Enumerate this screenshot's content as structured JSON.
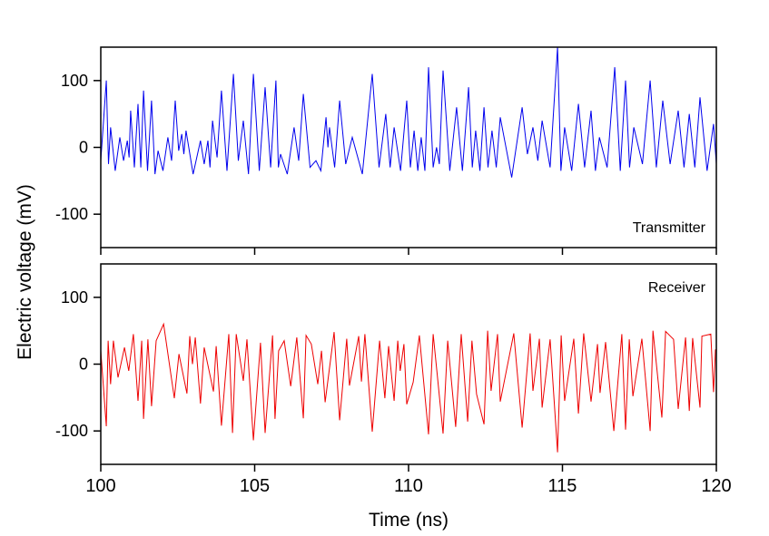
{
  "chart_data": {
    "type": "line",
    "xlabel": "Time (ns)",
    "ylabel": "Electric voltage (mV)",
    "xlim": [
      100,
      120
    ],
    "xticks": [
      100,
      105,
      110,
      115,
      120
    ],
    "grid": false,
    "panels": [
      {
        "label": "Transmitter",
        "label_position": "bottom-right",
        "color": "#0000ee",
        "ylim": [
          -150,
          150
        ],
        "yticks": [
          100,
          0,
          -100
        ],
        "points": [
          [
            100.0,
            -20
          ],
          [
            100.18,
            100
          ],
          [
            100.25,
            -25
          ],
          [
            100.32,
            30
          ],
          [
            100.47,
            -35
          ],
          [
            100.62,
            15
          ],
          [
            100.74,
            -20
          ],
          [
            100.86,
            10
          ],
          [
            100.92,
            -15
          ],
          [
            100.97,
            55
          ],
          [
            101.09,
            -30
          ],
          [
            101.21,
            65
          ],
          [
            101.3,
            -30
          ],
          [
            101.39,
            85
          ],
          [
            101.52,
            -35
          ],
          [
            101.65,
            70
          ],
          [
            101.76,
            -40
          ],
          [
            101.86,
            -5
          ],
          [
            102.02,
            -35
          ],
          [
            102.18,
            15
          ],
          [
            102.3,
            -20
          ],
          [
            102.42,
            70
          ],
          [
            102.53,
            -5
          ],
          [
            102.63,
            20
          ],
          [
            102.7,
            -10
          ],
          [
            102.77,
            25
          ],
          [
            103.0,
            -40
          ],
          [
            103.24,
            10
          ],
          [
            103.36,
            -25
          ],
          [
            103.48,
            10
          ],
          [
            103.55,
            -30
          ],
          [
            103.63,
            40
          ],
          [
            103.78,
            -15
          ],
          [
            103.92,
            85
          ],
          [
            104.1,
            -35
          ],
          [
            104.31,
            110
          ],
          [
            104.47,
            -20
          ],
          [
            104.63,
            40
          ],
          [
            104.8,
            -40
          ],
          [
            104.96,
            110
          ],
          [
            105.15,
            -35
          ],
          [
            105.34,
            90
          ],
          [
            105.52,
            -30
          ],
          [
            105.69,
            100
          ],
          [
            105.77,
            -30
          ],
          [
            105.84,
            -10
          ],
          [
            106.06,
            -40
          ],
          [
            106.28,
            30
          ],
          [
            106.43,
            -20
          ],
          [
            106.58,
            80
          ],
          [
            106.8,
            -30
          ],
          [
            106.99,
            -20
          ],
          [
            107.15,
            -35
          ],
          [
            107.32,
            45
          ],
          [
            107.38,
            0
          ],
          [
            107.43,
            30
          ],
          [
            107.6,
            -30
          ],
          [
            107.76,
            70
          ],
          [
            107.96,
            -25
          ],
          [
            108.17,
            15
          ],
          [
            108.5,
            -40
          ],
          [
            108.82,
            110
          ],
          [
            109.04,
            -30
          ],
          [
            109.26,
            50
          ],
          [
            109.4,
            -30
          ],
          [
            109.53,
            30
          ],
          [
            109.74,
            -35
          ],
          [
            109.94,
            70
          ],
          [
            110.06,
            -30
          ],
          [
            110.18,
            25
          ],
          [
            110.3,
            -35
          ],
          [
            110.41,
            15
          ],
          [
            110.53,
            -35
          ],
          [
            110.65,
            120
          ],
          [
            110.8,
            -30
          ],
          [
            110.91,
            0
          ],
          [
            111.0,
            -25
          ],
          [
            111.12,
            115
          ],
          [
            111.34,
            -35
          ],
          [
            111.56,
            60
          ],
          [
            111.75,
            -35
          ],
          [
            111.95,
            90
          ],
          [
            112.07,
            -30
          ],
          [
            112.18,
            25
          ],
          [
            112.32,
            -35
          ],
          [
            112.45,
            60
          ],
          [
            112.58,
            -30
          ],
          [
            112.71,
            25
          ],
          [
            112.85,
            -30
          ],
          [
            112.98,
            45
          ],
          [
            113.35,
            -45
          ],
          [
            113.69,
            60
          ],
          [
            113.86,
            -10
          ],
          [
            114.04,
            30
          ],
          [
            114.2,
            -20
          ],
          [
            114.34,
            40
          ],
          [
            114.6,
            -30
          ],
          [
            114.84,
            150
          ],
          [
            114.95,
            -35
          ],
          [
            115.07,
            30
          ],
          [
            115.3,
            -35
          ],
          [
            115.52,
            65
          ],
          [
            115.72,
            -30
          ],
          [
            115.93,
            55
          ],
          [
            116.07,
            -35
          ],
          [
            116.2,
            15
          ],
          [
            116.45,
            -30
          ],
          [
            116.7,
            120
          ],
          [
            116.88,
            -35
          ],
          [
            117.05,
            100
          ],
          [
            117.18,
            -30
          ],
          [
            117.32,
            30
          ],
          [
            117.6,
            -25
          ],
          [
            117.85,
            100
          ],
          [
            118.05,
            -30
          ],
          [
            118.26,
            70
          ],
          [
            118.5,
            -25
          ],
          [
            118.76,
            55
          ],
          [
            118.95,
            -30
          ],
          [
            119.12,
            50
          ],
          [
            119.3,
            -30
          ],
          [
            119.47,
            75
          ],
          [
            119.7,
            -35
          ],
          [
            119.91,
            35
          ],
          [
            120.0,
            -25
          ]
        ]
      },
      {
        "label": "Receiver",
        "label_position": "top-right",
        "color": "#ee0000",
        "ylim": [
          -150,
          150
        ],
        "yticks": [
          100,
          0,
          -100
        ],
        "points": [
          [
            100.0,
            20
          ],
          [
            100.18,
            -93
          ],
          [
            100.24,
            35
          ],
          [
            100.32,
            -30
          ],
          [
            100.41,
            35
          ],
          [
            100.56,
            -20
          ],
          [
            100.77,
            25
          ],
          [
            100.91,
            -10
          ],
          [
            101.06,
            45
          ],
          [
            101.21,
            -55
          ],
          [
            101.33,
            35
          ],
          [
            101.39,
            -82
          ],
          [
            101.53,
            37
          ],
          [
            101.65,
            -63
          ],
          [
            101.8,
            35
          ],
          [
            102.04,
            60
          ],
          [
            102.39,
            -51
          ],
          [
            102.54,
            15
          ],
          [
            102.8,
            -44
          ],
          [
            102.89,
            42
          ],
          [
            102.98,
            0
          ],
          [
            103.07,
            40
          ],
          [
            103.24,
            -59
          ],
          [
            103.36,
            25
          ],
          [
            103.66,
            -41
          ],
          [
            103.75,
            27
          ],
          [
            103.92,
            -92
          ],
          [
            104.16,
            45
          ],
          [
            104.28,
            -103
          ],
          [
            104.4,
            45
          ],
          [
            104.63,
            -25
          ],
          [
            104.75,
            37
          ],
          [
            104.96,
            -114
          ],
          [
            105.19,
            32
          ],
          [
            105.34,
            -103
          ],
          [
            105.58,
            43
          ],
          [
            105.66,
            -82
          ],
          [
            105.78,
            20
          ],
          [
            105.96,
            35
          ],
          [
            106.17,
            -33
          ],
          [
            106.37,
            40
          ],
          [
            106.58,
            -81
          ],
          [
            106.67,
            43
          ],
          [
            106.84,
            30
          ],
          [
            107.05,
            -30
          ],
          [
            107.17,
            20
          ],
          [
            107.29,
            -57
          ],
          [
            107.58,
            48
          ],
          [
            107.76,
            -84
          ],
          [
            107.99,
            38
          ],
          [
            108.08,
            -32
          ],
          [
            108.38,
            42
          ],
          [
            108.47,
            -26
          ],
          [
            108.58,
            45
          ],
          [
            108.82,
            -101
          ],
          [
            109.06,
            35
          ],
          [
            109.23,
            -51
          ],
          [
            109.35,
            27
          ],
          [
            109.53,
            -55
          ],
          [
            109.65,
            35
          ],
          [
            109.73,
            -10
          ],
          [
            109.85,
            30
          ],
          [
            109.94,
            -60
          ],
          [
            110.15,
            -27
          ],
          [
            110.35,
            43
          ],
          [
            110.65,
            -105
          ],
          [
            110.8,
            45
          ],
          [
            110.94,
            -20
          ],
          [
            111.12,
            -104
          ],
          [
            111.27,
            35
          ],
          [
            111.53,
            -94
          ],
          [
            111.71,
            45
          ],
          [
            111.92,
            -86
          ],
          [
            112.06,
            35
          ],
          [
            112.21,
            -45
          ],
          [
            112.45,
            -90
          ],
          [
            112.57,
            50
          ],
          [
            112.68,
            -40
          ],
          [
            112.89,
            45
          ],
          [
            112.98,
            -56
          ],
          [
            113.42,
            46
          ],
          [
            113.69,
            -95
          ],
          [
            113.95,
            46
          ],
          [
            114.04,
            -40
          ],
          [
            114.25,
            38
          ],
          [
            114.34,
            -65
          ],
          [
            114.6,
            37
          ],
          [
            114.84,
            -132
          ],
          [
            114.96,
            43
          ],
          [
            115.07,
            -55
          ],
          [
            115.37,
            38
          ],
          [
            115.52,
            -74
          ],
          [
            115.69,
            46
          ],
          [
            115.93,
            -56
          ],
          [
            116.14,
            30
          ],
          [
            116.22,
            -43
          ],
          [
            116.4,
            33
          ],
          [
            116.67,
            -100
          ],
          [
            116.93,
            45
          ],
          [
            117.05,
            -98
          ],
          [
            117.17,
            37
          ],
          [
            117.29,
            -48
          ],
          [
            117.58,
            38
          ],
          [
            117.85,
            -100
          ],
          [
            117.94,
            50
          ],
          [
            118.23,
            -80
          ],
          [
            118.35,
            49
          ],
          [
            118.61,
            37
          ],
          [
            118.76,
            -67
          ],
          [
            119.0,
            40
          ],
          [
            119.12,
            -70
          ],
          [
            119.23,
            39
          ],
          [
            119.47,
            -65
          ],
          [
            119.53,
            42
          ],
          [
            119.82,
            45
          ],
          [
            119.91,
            -42
          ],
          [
            119.97,
            22
          ]
        ]
      }
    ]
  }
}
